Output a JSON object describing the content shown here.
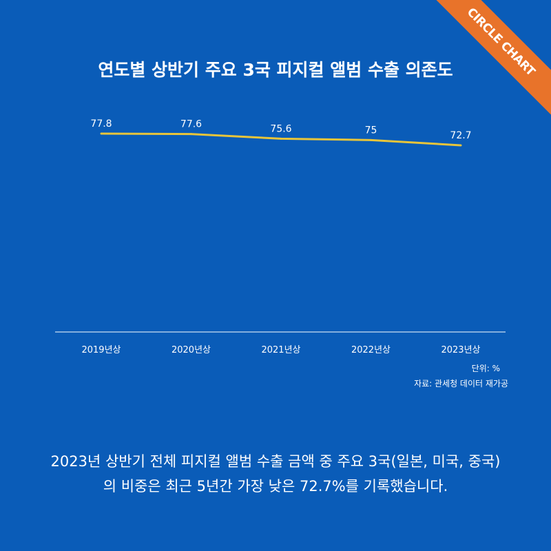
{
  "brand": {
    "ribbon_label": "CIRCLE CHART",
    "ribbon_color": "#E8732A",
    "background_color": "#0A5CB8"
  },
  "header": {
    "title": "연도별 상반기 주요 3국 피지컬 앨범 수출 의존도"
  },
  "notes": {
    "unit": "단위: %",
    "source": "자료: 관세청 데이터 재가공"
  },
  "caption": {
    "line1": "2023년 상반기 전체 피지컬 앨범 수출 금액 중 주요 3국(일본, 미국, 중국)",
    "line2": "의 비중은 최근 5년간 가장 낮은 72.7%를 기록했습니다."
  },
  "chart_data": {
    "type": "line",
    "title": "연도별 상반기 주요 3국 피지컬 앨범 수출 의존도",
    "categories": [
      "2019년상",
      "2020년상",
      "2021년상",
      "2022년상",
      "2023년상"
    ],
    "series": [
      {
        "values": [
          77.8,
          77.6,
          75.6,
          75,
          72.7
        ],
        "color": "#E8C53A"
      }
    ],
    "data_labels": [
      "77.8",
      "77.6",
      "75.6",
      "75",
      "72.7"
    ],
    "ylim": [
      0,
      100
    ],
    "grid": false,
    "legend": "none"
  }
}
